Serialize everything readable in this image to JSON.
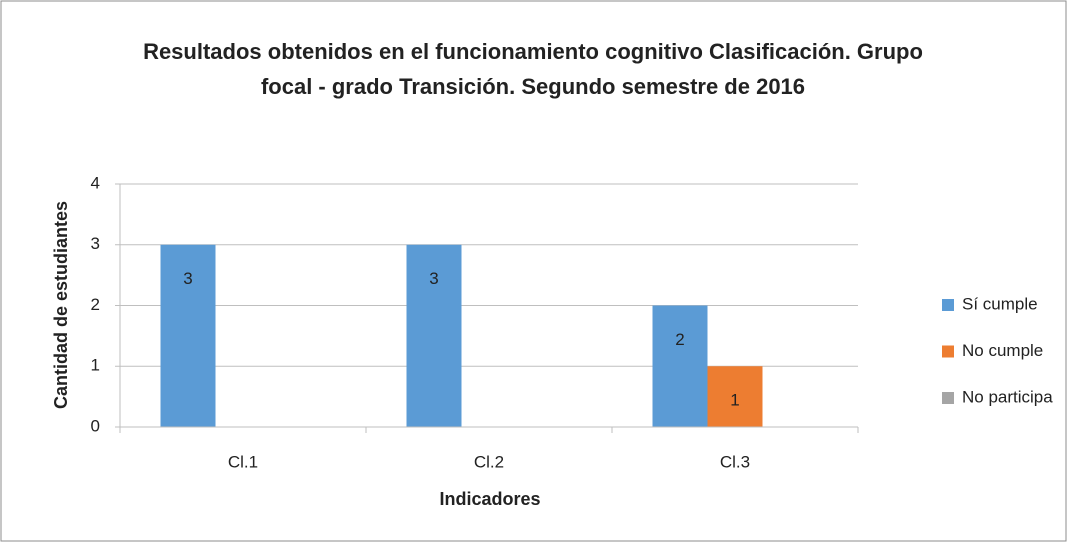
{
  "chart_data": {
    "type": "bar",
    "title": "Resultados obtenidos en el funcionamiento cognitivo Clasificación. Grupo focal - grado Transición. Segundo semestre de 2016",
    "x_label": "Indicadores",
    "y_label": "Cantidad de estudiantes",
    "categories": [
      "Cl.1",
      "Cl.2",
      "Cl.3"
    ],
    "series": [
      {
        "name": "Sí cumple",
        "color": "#5b9bd5",
        "values": [
          3,
          3,
          2
        ]
      },
      {
        "name": "No cumple",
        "color": "#ed7d31",
        "values": [
          0,
          0,
          1
        ]
      },
      {
        "name": "No participa",
        "color": "#a5a5a5",
        "values": [
          0,
          0,
          0
        ]
      }
    ],
    "ylim": [
      0,
      4
    ],
    "yticks": [
      0,
      1,
      2,
      3,
      4
    ],
    "grid": true,
    "legend": "right"
  }
}
